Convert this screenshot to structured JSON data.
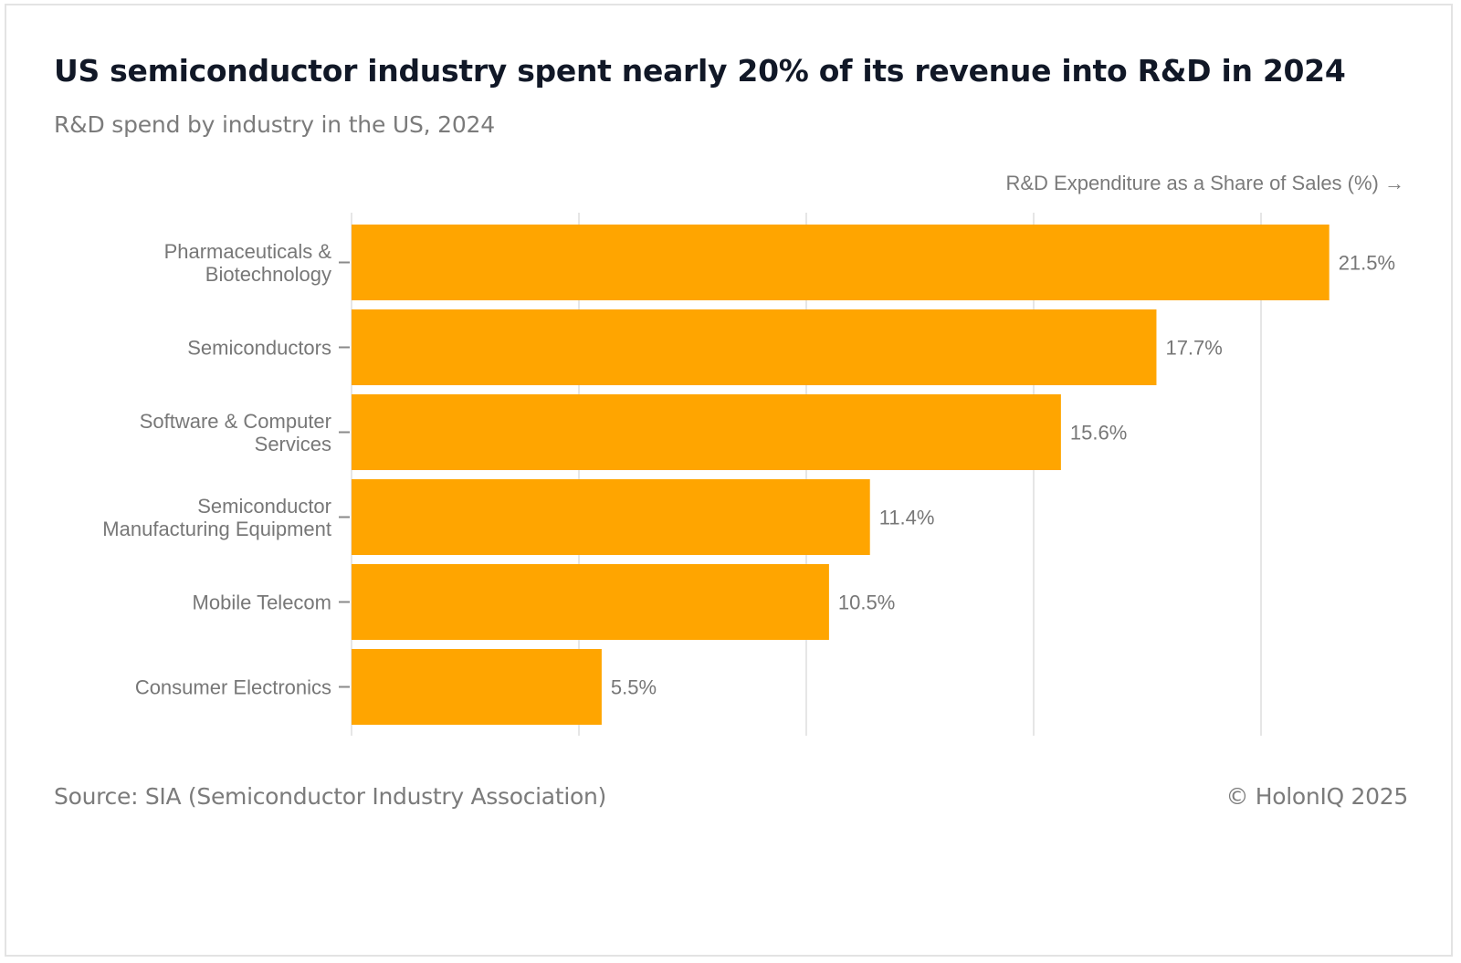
{
  "header": {
    "title": "US semiconductor industry spent nearly 20% of its revenue into R&D in 2024",
    "subtitle": "R&D spend by industry in the US, 2024"
  },
  "footer": {
    "source": "Source: SIA (Semiconductor Industry Association)",
    "copyright": "© HolonIQ 2025"
  },
  "colors": {
    "bar": "#FFA500",
    "grid": "#e6e6e6",
    "label": "#777777",
    "title": "#111827"
  },
  "chart_data": {
    "type": "bar",
    "orientation": "horizontal",
    "title": "US semiconductor industry spent nearly 20% of its revenue into R&D in 2024",
    "subtitle": "R&D spend by industry in the US, 2024",
    "xlabel": "R&D Expenditure as a Share of Sales (%) →",
    "ylabel": "",
    "categories": [
      [
        "Pharmaceuticals &",
        "Biotechnology"
      ],
      [
        "Semiconductors"
      ],
      [
        "Software & Computer",
        "Services"
      ],
      [
        "Semiconductor",
        "Manufacturing Equipment"
      ],
      [
        "Mobile Telecom"
      ],
      [
        "Consumer Electronics"
      ]
    ],
    "values": [
      21.5,
      17.7,
      15.6,
      11.4,
      10.5,
      5.5
    ],
    "data_labels": [
      "21.5%",
      "17.7%",
      "15.6%",
      "11.4%",
      "10.5%",
      "5.5%"
    ],
    "xlim": [
      0,
      21.5
    ],
    "grid_x": [
      0,
      5,
      10,
      15,
      20
    ],
    "x_tick_labels_shown": false,
    "grid": true,
    "legend": "none",
    "source": "Source: SIA (Semiconductor Industry Association)"
  }
}
